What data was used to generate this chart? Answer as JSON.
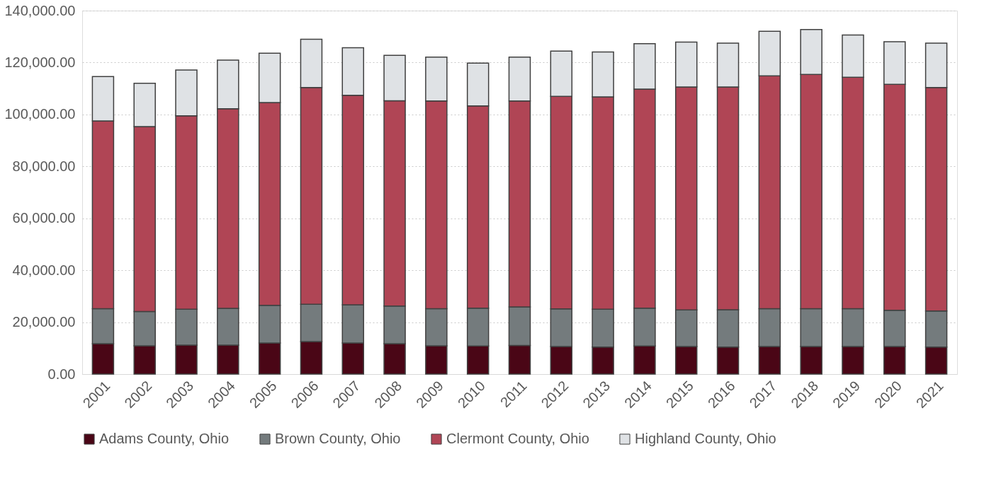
{
  "chart_data": {
    "type": "bar",
    "stacked": true,
    "categories": [
      "2001",
      "2002",
      "2003",
      "2004",
      "2005",
      "2006",
      "2007",
      "2008",
      "2009",
      "2010",
      "2011",
      "2012",
      "2013",
      "2014",
      "2015",
      "2016",
      "2017",
      "2018",
      "2019",
      "2020",
      "2021"
    ],
    "series": [
      {
        "name": "Adams County, Ohio",
        "color": "#4a0616",
        "values": [
          11700,
          10900,
          11200,
          11200,
          12000,
          12500,
          12000,
          11700,
          10900,
          10800,
          11000,
          10600,
          10400,
          10800,
          10600,
          10400,
          10600,
          10600,
          10600,
          10600,
          10400
        ]
      },
      {
        "name": "Brown County, Ohio",
        "color": "#747b7d",
        "values": [
          13500,
          13200,
          13800,
          14100,
          14500,
          14400,
          14700,
          14500,
          14300,
          14600,
          14900,
          14500,
          14600,
          14600,
          14100,
          14400,
          14600,
          14600,
          14600,
          14000,
          13900
        ]
      },
      {
        "name": "Clermont County, Ohio",
        "color": "#b04555",
        "values": [
          72300,
          71200,
          74500,
          76900,
          78100,
          83500,
          80700,
          79100,
          80000,
          77900,
          79300,
          81900,
          81800,
          84400,
          85900,
          85800,
          89700,
          90200,
          89100,
          87000,
          86100
        ]
      },
      {
        "name": "Highland County, Ohio",
        "color": "#dfe2e5",
        "values": [
          17100,
          16700,
          17600,
          18700,
          19000,
          18600,
          18300,
          17500,
          16900,
          16500,
          16900,
          17400,
          17300,
          17500,
          17300,
          16900,
          17100,
          17300,
          16300,
          16400,
          17100
        ]
      }
    ],
    "ylim": [
      0,
      140000
    ],
    "yticks": [
      {
        "value": 0,
        "label": "0.00"
      },
      {
        "value": 20000,
        "label": "20,000.00"
      },
      {
        "value": 40000,
        "label": "40,000.00"
      },
      {
        "value": 60000,
        "label": "60,000.00"
      },
      {
        "value": 80000,
        "label": "80,000.00"
      },
      {
        "value": 100000,
        "label": "100,000.00"
      },
      {
        "value": 120000,
        "label": "120,000.00"
      },
      {
        "value": 140000,
        "label": "140,000.00"
      }
    ],
    "grid": "y",
    "legend": "bottom"
  }
}
